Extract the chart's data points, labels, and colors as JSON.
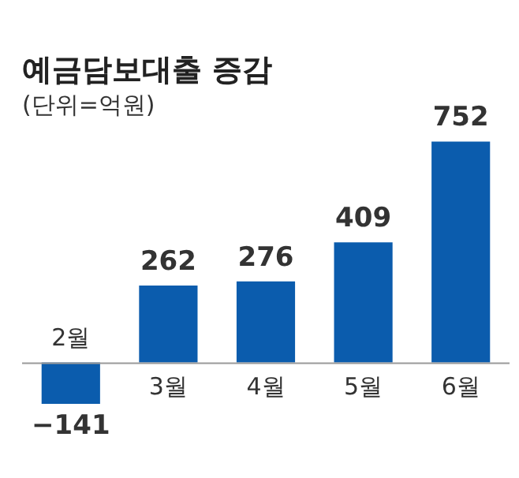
{
  "chart_data": {
    "type": "bar",
    "title": "예금담보대출 증감",
    "subtitle": "(단위=억원)",
    "categories": [
      "2월",
      "3월",
      "4월",
      "5월",
      "6월"
    ],
    "values": [
      -141,
      262,
      276,
      409,
      752
    ],
    "color": "#0b5cad",
    "data_labels": true
  }
}
